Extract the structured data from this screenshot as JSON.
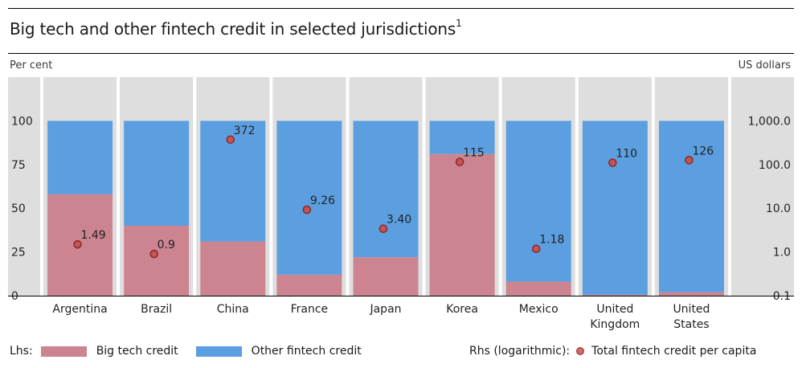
{
  "title": "Big tech and other fintech credit in selected jurisdictions",
  "title_footnote": "1",
  "lhs_unit": "Per cent",
  "rhs_unit": "US dollars",
  "colors": {
    "big_tech": "#cc8590",
    "other_fintech": "#5b9fe0",
    "panel_bg": "#dedede",
    "dot": "#8b2c2c"
  },
  "legend": {
    "lhs_label": "Lhs:",
    "big_tech": "Big tech credit",
    "other_fintech": "Other fintech credit",
    "rhs_label": "Rhs (logarithmic):",
    "dot": "Total fintech credit per capita"
  },
  "chart_data": {
    "type": "bar",
    "stacked": true,
    "categories": [
      "Argentina",
      "Brazil",
      "China",
      "France",
      "Japan",
      "Korea",
      "Mexico",
      "United Kingdom",
      "United States"
    ],
    "category_labels": [
      [
        "Argentina"
      ],
      [
        "Brazil"
      ],
      [
        "China"
      ],
      [
        "France"
      ],
      [
        "Japan"
      ],
      [
        "Korea"
      ],
      [
        "Mexico"
      ],
      [
        "United",
        "Kingdom"
      ],
      [
        "United",
        "States"
      ]
    ],
    "series": [
      {
        "name": "Big tech credit",
        "axis": "left",
        "values": [
          58,
          40,
          31,
          12,
          22,
          81,
          8,
          0.5,
          2
        ]
      },
      {
        "name": "Other fintech credit",
        "axis": "left",
        "values": [
          42,
          60,
          69,
          88,
          78,
          19,
          92,
          99.5,
          98
        ]
      },
      {
        "name": "Total fintech credit per capita",
        "axis": "right",
        "type": "scatter",
        "values": [
          1.49,
          0.9,
          372,
          9.26,
          3.4,
          115,
          1.18,
          110,
          126
        ],
        "labels": [
          "1.49",
          "0.9",
          "372",
          "9.26",
          "3.40",
          "115",
          "1.18",
          "110",
          "126"
        ]
      }
    ],
    "left_axis": {
      "label": "Per cent",
      "ticks": [
        0,
        25,
        50,
        75,
        100
      ],
      "range": [
        0,
        125
      ]
    },
    "right_axis": {
      "label": "US dollars",
      "scale": "log",
      "ticks": [
        0.1,
        1,
        10,
        100,
        1000
      ],
      "tick_labels": [
        "0.1",
        "1.0",
        "10.0",
        "100.0",
        "1,000.0"
      ],
      "range": [
        0.1,
        10000
      ]
    },
    "grid": false
  }
}
